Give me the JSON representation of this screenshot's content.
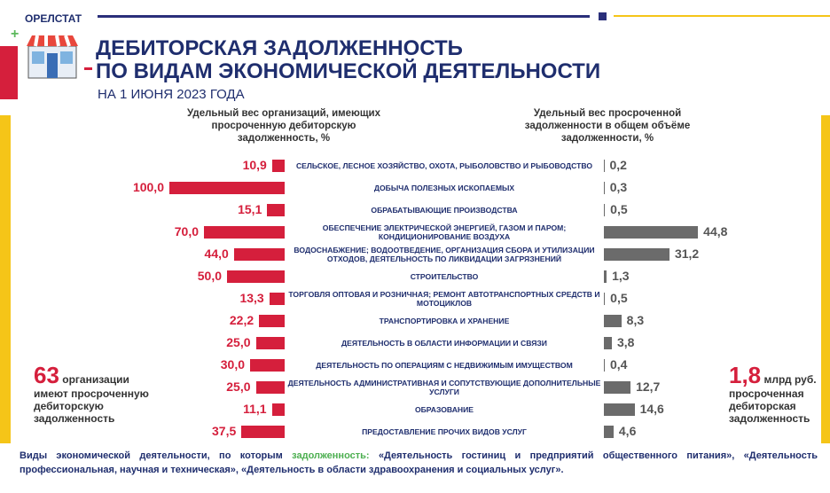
{
  "header": {
    "brand": "ОРЕЛСТАТ",
    "title_line1": "ДЕБИТОРСКАЯ ЗАДОЛЖЕННОСТЬ",
    "title_line2": "ПО ВИДАМ ЭКОНОМИЧЕСКОЙ ДЕЯТЕЛЬНОСТИ",
    "subtitle": "НА 1 ИЮНЯ 2023 ГОДА"
  },
  "chart_data": {
    "type": "bar",
    "categories": [
      "СЕЛЬСКОЕ, ЛЕСНОЕ ХОЗЯЙСТВО, ОХОТА, РЫБОЛОВСТВО И РЫБОВОДСТВО",
      "ДОБЫЧА ПОЛЕЗНЫХ ИСКОПАЕМЫХ",
      "ОБРАБАТЫВАЮЩИЕ ПРОИЗВОДСТВА",
      "ОБЕСПЕЧЕНИЕ ЭЛЕКТРИЧЕСКОЙ ЭНЕРГИЕЙ, ГАЗОМ И ПАРОМ; КОНДИЦИОНИРОВАНИЕ ВОЗДУХА",
      "ВОДОСНАБЖЕНИЕ; ВОДООТВЕДЕНИЕ, ОРГАНИЗАЦИЯ СБОРА И УТИЛИЗАЦИИ ОТХОДОВ, ДЕЯТЕЛЬНОСТЬ ПО ЛИКВИДАЦИИ ЗАГРЯЗНЕНИЙ",
      "СТРОИТЕЛЬСТВО",
      "ТОРГОВЛЯ ОПТОВАЯ И РОЗНИЧНАЯ; РЕМОНТ АВТОТРАНСПОРТНЫХ СРЕДСТВ И МОТОЦИКЛОВ",
      "ТРАНСПОРТИРОВКА И ХРАНЕНИЕ",
      "ДЕЯТЕЛЬНОСТЬ В ОБЛАСТИ ИНФОРМАЦИИ И СВЯЗИ",
      "ДЕЯТЕЛЬНОСТЬ ПО ОПЕРАЦИЯМ С НЕДВИЖИМЫМ ИМУЩЕСТВОМ",
      "ДЕЯТЕЛЬНОСТЬ АДМИНИСТРАТИВНАЯ И СОПУТСТВУЮЩИЕ ДОПОЛНИТЕЛЬНЫЕ УСЛУГИ",
      "ОБРАЗОВАНИЕ",
      "ПРЕДОСТАВЛЕНИЕ ПРОЧИХ ВИДОВ УСЛУГ"
    ],
    "series": [
      {
        "name": "Удельный вес организаций, имеющих просроченную дебиторскую задолженность, %",
        "color": "#d51f3c",
        "values": [
          10.9,
          100.0,
          15.1,
          70.0,
          44.0,
          50.0,
          13.3,
          22.2,
          25.0,
          30.0,
          25.0,
          11.1,
          37.5
        ],
        "value_labels": [
          "10,9",
          "100,0",
          "15,1",
          "70,0",
          "44,0",
          "50,0",
          "13,3",
          "22,2",
          "25,0",
          "30,0",
          "25,0",
          "11,1",
          "37,5"
        ]
      },
      {
        "name": "Удельный вес просроченной задолженности в общем объёме задолженности, %",
        "color": "#6b6b6b",
        "values": [
          0.2,
          0.3,
          0.5,
          44.8,
          31.2,
          1.3,
          0.5,
          8.3,
          3.8,
          0.4,
          12.7,
          14.6,
          4.6
        ],
        "value_labels": [
          "0,2",
          "0,3",
          "0,5",
          "44,8",
          "31,2",
          "1,3",
          "0,5",
          "8,3",
          "3,8",
          "0,4",
          "12,7",
          "14,6",
          "4,6"
        ]
      }
    ]
  },
  "left_note": {
    "number": "63",
    "word": "организации",
    "text": "имеют просроченную дебиторскую задолженность"
  },
  "right_note": {
    "number": "1,8",
    "unit": "млрд руб.",
    "text": "просроченная дебиторская задолженность"
  },
  "footer": {
    "part1": "Виды экономической деятельности, по которым",
    "highlight": "задолженность:",
    "part2": "«Деятельность гостиниц и предприятий общественного питания», «Деятельность профессиональная, научная и техническая», «Деятельность в области здравоохранения и социальных услуг»."
  }
}
